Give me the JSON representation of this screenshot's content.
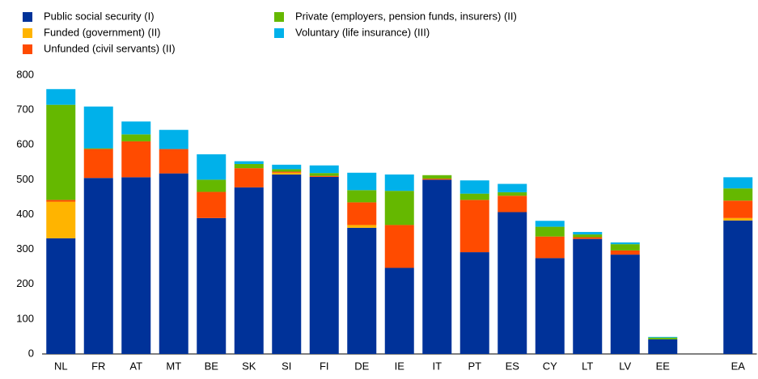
{
  "chart_data": {
    "type": "stacked-bar",
    "categories": [
      "NL",
      "FR",
      "AT",
      "MT",
      "BE",
      "SK",
      "SI",
      "FI",
      "DE",
      "IE",
      "IT",
      "PT",
      "ES",
      "CY",
      "LT",
      "LV",
      "EE",
      null,
      "EA"
    ],
    "series": [
      {
        "name": "Public social security (I)",
        "color": "#003299",
        "values": [
          332,
          505,
          507,
          518,
          390,
          478,
          515,
          508,
          362,
          247,
          500,
          292,
          407,
          275,
          330,
          285,
          42,
          null,
          383
        ]
      },
      {
        "name": "Funded (government) (II)",
        "color": "#ffb400",
        "values": [
          105,
          0,
          0,
          0,
          0,
          0,
          5,
          0,
          8,
          0,
          0,
          0,
          0,
          0,
          0,
          0,
          0,
          null,
          7
        ]
      },
      {
        "name": "Unfunded (civil servants) (II)",
        "color": "#ff4b00",
        "values": [
          5,
          83,
          103,
          70,
          75,
          55,
          3,
          3,
          65,
          123,
          3,
          150,
          47,
          62,
          5,
          12,
          0,
          null,
          50
        ]
      },
      {
        "name": "Private (employers, pension funds, insurers) (II)",
        "color": "#65b800",
        "values": [
          273,
          2,
          20,
          0,
          35,
          12,
          7,
          8,
          35,
          98,
          10,
          18,
          10,
          28,
          8,
          18,
          5,
          null,
          35
        ]
      },
      {
        "name": "Voluntary (life insurance) (III)",
        "color": "#00b1ea",
        "values": [
          45,
          120,
          37,
          55,
          73,
          8,
          13,
          22,
          50,
          47,
          0,
          38,
          24,
          17,
          7,
          5,
          2,
          null,
          32
        ]
      }
    ],
    "ylim": [
      0,
      800
    ],
    "yticks": [
      0,
      100,
      200,
      300,
      400,
      500,
      600,
      700,
      800
    ],
    "grid": false
  }
}
